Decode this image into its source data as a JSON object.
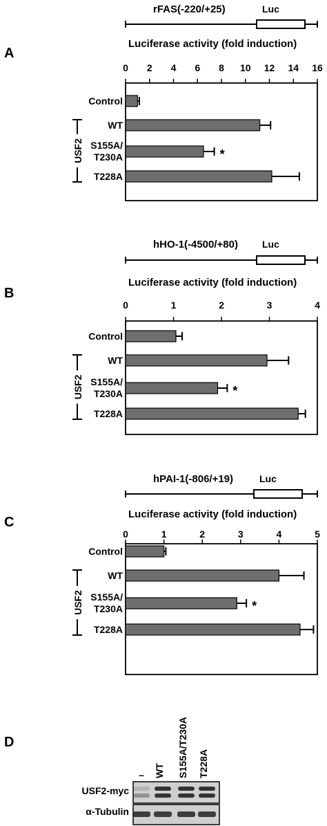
{
  "chart_data": [
    {
      "panel": "A",
      "type": "bar",
      "construct": "rFAS(-220/+25)",
      "reporter": "Luc",
      "xlabel": "Luciferase activity (fold induction)",
      "ticks": [
        "0",
        "2",
        "4",
        "6",
        "8",
        "10",
        "12",
        "14",
        "16"
      ],
      "xlim": [
        0,
        16
      ],
      "group_label": "USF2",
      "categories": [
        "Control",
        "WT",
        "S155A/\nT230A",
        "T228A"
      ],
      "values": [
        1.0,
        11.2,
        6.5,
        12.2
      ],
      "errors": [
        0.15,
        0.9,
        0.9,
        2.3
      ],
      "significance": [
        "",
        "",
        "*",
        ""
      ]
    },
    {
      "panel": "B",
      "type": "bar",
      "construct": "hHO-1(-4500/+80)",
      "reporter": "Luc",
      "xlabel": "Luciferase activity (fold induction)",
      "ticks": [
        "0",
        "1",
        "2",
        "3",
        "4"
      ],
      "xlim": [
        0,
        4
      ],
      "group_label": "USF2",
      "categories": [
        "Control",
        "WT",
        "S155A/\nT230A",
        "T228A"
      ],
      "values": [
        1.05,
        2.95,
        1.92,
        3.6
      ],
      "errors": [
        0.13,
        0.45,
        0.2,
        0.15
      ],
      "significance": [
        "",
        "",
        "*",
        ""
      ]
    },
    {
      "panel": "C",
      "type": "bar",
      "construct": "hPAI-1(-806/+19)",
      "reporter": "Luc",
      "xlabel": "Luciferase activity (fold induction)",
      "ticks": [
        "0",
        "1",
        "2",
        "3",
        "4",
        "5"
      ],
      "xlim": [
        0,
        5
      ],
      "group_label": "USF2",
      "categories": [
        "Control",
        "WT",
        "S155A/\nT230A",
        "T228A"
      ],
      "values": [
        1.0,
        4.0,
        2.9,
        4.55
      ],
      "errors": [
        0.05,
        0.65,
        0.25,
        0.35
      ],
      "significance": [
        "",
        "",
        "*",
        ""
      ]
    }
  ],
  "blot": {
    "panel": "D",
    "lanes": [
      "–",
      "WT",
      "S155A/T230A",
      "T228A"
    ],
    "rows": [
      "USF2-myc",
      "α-Tubulin"
    ]
  },
  "colors": {
    "bar": "#6e6e6e",
    "ink": "#000000",
    "blot_bg": "#cfcfcf",
    "band": "#222222"
  }
}
